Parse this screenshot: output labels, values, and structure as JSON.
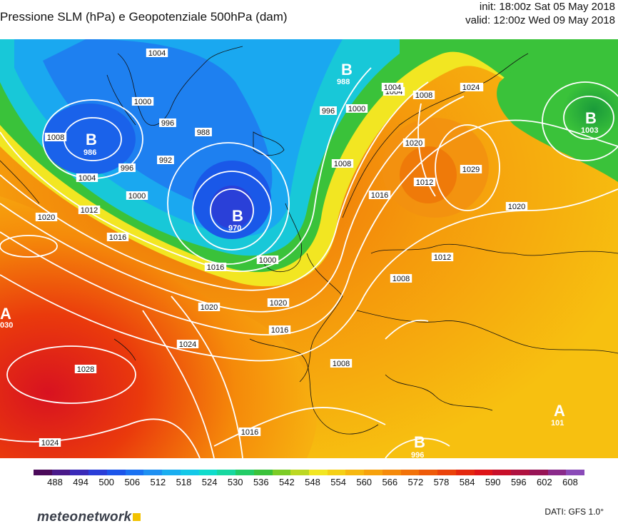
{
  "header": {
    "title": "Pressione SLM (hPa) e Geopotenziale 500hPa (dam)",
    "init": "init: 18:00z Sat 05 May 2018",
    "valid": "valid: 12:00z Wed 09 May 2018"
  },
  "colorbar": {
    "ticks": [
      "488",
      "494",
      "500",
      "506",
      "512",
      "518",
      "524",
      "530",
      "536",
      "542",
      "548",
      "554",
      "560",
      "566",
      "572",
      "578",
      "584",
      "590",
      "596",
      "602",
      "608"
    ],
    "colors": [
      "#4b0a5a",
      "#4a1a8a",
      "#3a2ab8",
      "#2a3ed8",
      "#1c55ea",
      "#1a72f2",
      "#1e90f2",
      "#1aaef0",
      "#14c8e8",
      "#10dccc",
      "#18d8a0",
      "#22cc66",
      "#3ac23a",
      "#7ccc26",
      "#bcd822",
      "#f2e622",
      "#f5d015",
      "#f7b810",
      "#f7a20c",
      "#f58a0a",
      "#f27208",
      "#ee5a08",
      "#ea420a",
      "#e4280e",
      "#de1418",
      "#c8102a",
      "#b01240",
      "#981456",
      "#8a2a8a",
      "#8a4ab8"
    ]
  },
  "pressure_systems": [
    {
      "letter": "B",
      "value": "986"
    },
    {
      "letter": "B",
      "value": "970"
    },
    {
      "letter": "B",
      "value": "988"
    },
    {
      "letter": "B",
      "value": "1003"
    },
    {
      "letter": "A",
      "value": "030"
    },
    {
      "letter": "A",
      "value": "101"
    },
    {
      "letter": "B",
      "value": "996"
    }
  ],
  "isobar_labels": [
    "1004",
    "1000",
    "996",
    "992",
    "988",
    "1008",
    "1004",
    "996",
    "1000",
    "1012",
    "1016",
    "1020",
    "1020",
    "1008",
    "1000",
    "996",
    "1000",
    "1004",
    "1008",
    "1012",
    "1016",
    "1020",
    "1016",
    "1020",
    "1024",
    "1028",
    "1024",
    "1016",
    "1008",
    "1016",
    "1008",
    "1012",
    "1012",
    "1024",
    "1004",
    "1029",
    "1020"
  ],
  "footer": {
    "brand": "meteonetwork",
    "source": "DATI: GFS 1.0°"
  }
}
